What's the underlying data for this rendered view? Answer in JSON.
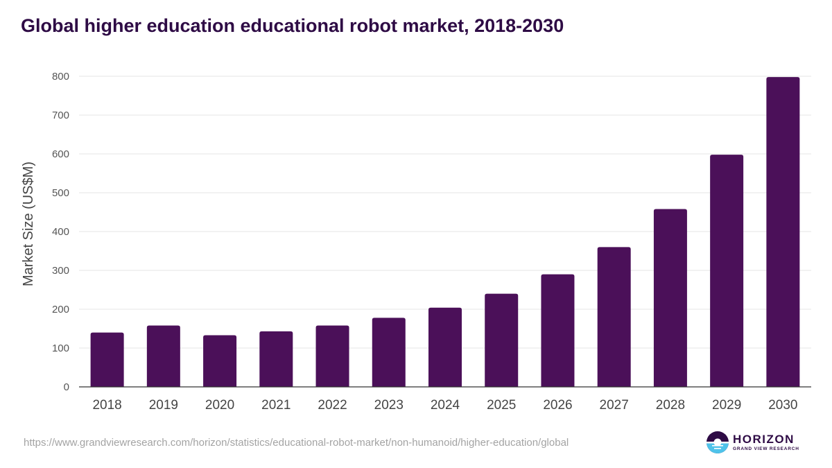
{
  "title": "Global higher education educational robot market, 2018-2030",
  "source_url": "https://www.grandviewresearch.com/horizon/statistics/educational-robot-market/non-humanoid/higher-education/global",
  "logo": {
    "name": "HORIZON",
    "tagline": "GRAND VIEW RESEARCH",
    "colors": {
      "dark": "#2e0b45",
      "light": "#4fc3ea"
    }
  },
  "colors": {
    "bar": "#4b1059",
    "grid": "#e6e6e6",
    "axis": "#333333"
  },
  "chart_data": {
    "type": "bar",
    "title": "Global higher education educational robot market, 2018-2030",
    "xlabel": "",
    "ylabel": "Market Size (US$M)",
    "ylim": [
      0,
      800
    ],
    "yticks": [
      0,
      100,
      200,
      300,
      400,
      500,
      600,
      700,
      800
    ],
    "grid": true,
    "categories": [
      "2018",
      "2019",
      "2020",
      "2021",
      "2022",
      "2023",
      "2024",
      "2025",
      "2026",
      "2027",
      "2028",
      "2029",
      "2030"
    ],
    "values": [
      140,
      158,
      133,
      143,
      158,
      178,
      204,
      240,
      290,
      360,
      458,
      598,
      798
    ]
  }
}
